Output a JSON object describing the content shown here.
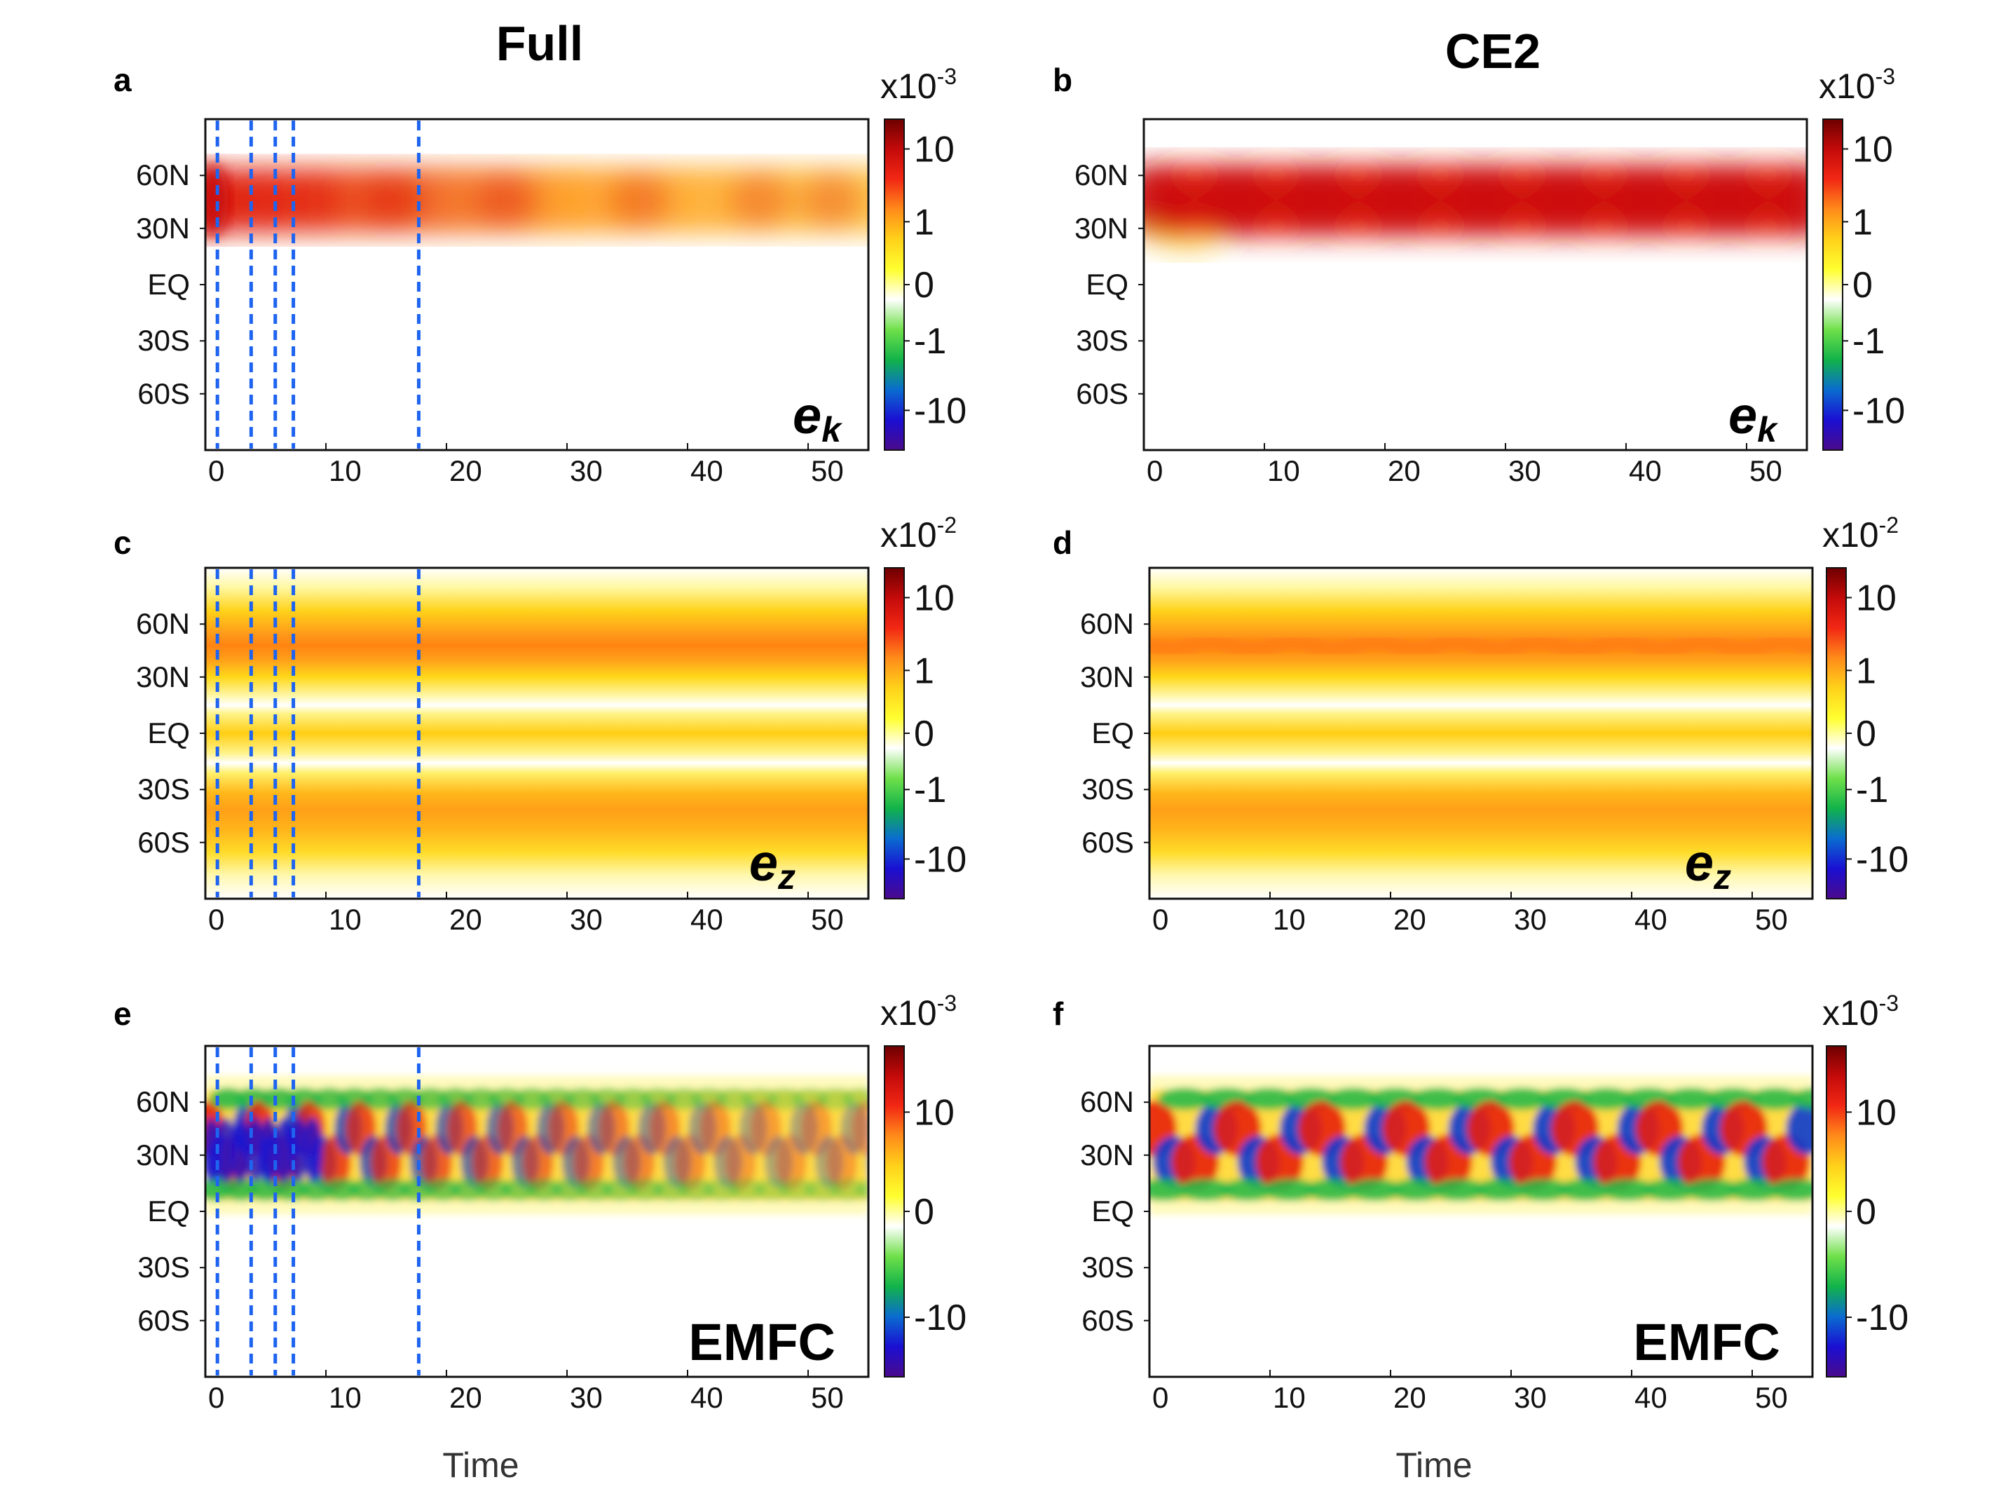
{
  "columns": [
    {
      "title": "Full"
    },
    {
      "title": "CE2"
    }
  ],
  "xlabel": "Time",
  "chart_data": [
    {
      "type": "heatmap",
      "panel": "a",
      "column": "Full",
      "variable": "e",
      "subscript": "k",
      "colorbar": {
        "scale_base": "x10",
        "scale_exp": "-3",
        "ticks": [
          "10",
          "1",
          "0",
          "-1",
          "-10"
        ]
      },
      "xticks": [
        "0",
        "10",
        "20",
        "30",
        "40",
        "50"
      ],
      "xlim": [
        0,
        55
      ],
      "yticks": [
        "60N",
        "30N",
        "EQ",
        "30S",
        "60S"
      ],
      "dashed_lines_time": [
        1,
        3.8,
        5.8,
        7.3,
        17.7
      ],
      "description_values": {
        "band_center_lat": 40,
        "band_width_lat": 28,
        "max_value_exponent": 1
      }
    },
    {
      "type": "heatmap",
      "panel": "b",
      "column": "CE2",
      "variable": "e",
      "subscript": "k",
      "colorbar": {
        "scale_base": "x10",
        "scale_exp": "-3",
        "ticks": [
          "10",
          "1",
          "0",
          "-1",
          "-10"
        ]
      },
      "xticks": [
        "0",
        "10",
        "20",
        "30",
        "40",
        "50"
      ],
      "xlim": [
        0,
        55
      ],
      "yticks": [
        "60N",
        "30N",
        "EQ",
        "30S",
        "60S"
      ],
      "oscillation_period": 6.8
    },
    {
      "type": "heatmap",
      "panel": "c",
      "column": "Full",
      "variable": "e",
      "subscript": "z",
      "colorbar": {
        "scale_base": "x10",
        "scale_exp": "-2",
        "ticks": [
          "10",
          "1",
          "0",
          "-1",
          "-10"
        ]
      },
      "xticks": [
        "0",
        "10",
        "20",
        "30",
        "40",
        "50"
      ],
      "xlim": [
        0,
        55
      ],
      "yticks": [
        "60N",
        "30N",
        "EQ",
        "30S",
        "60S"
      ],
      "dashed_lines_time": [
        1,
        3.8,
        5.8,
        7.3,
        17.7
      ]
    },
    {
      "type": "heatmap",
      "panel": "d",
      "column": "CE2",
      "variable": "e",
      "subscript": "z",
      "colorbar": {
        "scale_base": "x10",
        "scale_exp": "-2",
        "ticks": [
          "10",
          "1",
          "0",
          "-1",
          "-10"
        ]
      },
      "xticks": [
        "0",
        "10",
        "20",
        "30",
        "40",
        "50"
      ],
      "xlim": [
        0,
        55
      ],
      "yticks": [
        "60N",
        "30N",
        "EQ",
        "30S",
        "60S"
      ]
    },
    {
      "type": "heatmap",
      "panel": "e",
      "column": "Full",
      "variable": "EMFC",
      "colorbar": {
        "scale_base": "x10",
        "scale_exp": "-3",
        "ticks": [
          "10",
          "0",
          "-10"
        ]
      },
      "xticks": [
        "0",
        "10",
        "20",
        "30",
        "40",
        "50"
      ],
      "xlim": [
        0,
        55
      ],
      "yticks": [
        "60N",
        "30N",
        "EQ",
        "30S",
        "60S"
      ],
      "dashed_lines_time": [
        1,
        3.8,
        5.8,
        7.3,
        17.7
      ]
    },
    {
      "type": "heatmap",
      "panel": "f",
      "column": "CE2",
      "variable": "EMFC",
      "colorbar": {
        "scale_base": "x10",
        "scale_exp": "-3",
        "ticks": [
          "10",
          "0",
          "-10"
        ]
      },
      "xticks": [
        "0",
        "10",
        "20",
        "30",
        "40",
        "50"
      ],
      "xlim": [
        0,
        55
      ],
      "yticks": [
        "60N",
        "30N",
        "EQ",
        "30S",
        "60S"
      ]
    }
  ],
  "colors": {
    "colormap": [
      "#4b0a8c",
      "#1a0fd2",
      "#0a6cd0",
      "#12b34a",
      "#6fe04a",
      "#ffffff",
      "#ffff30",
      "#ffd21a",
      "#ff8c1a",
      "#f22814",
      "#c40a0a",
      "#6e0000"
    ],
    "dashed_line": "#1e64f0"
  }
}
